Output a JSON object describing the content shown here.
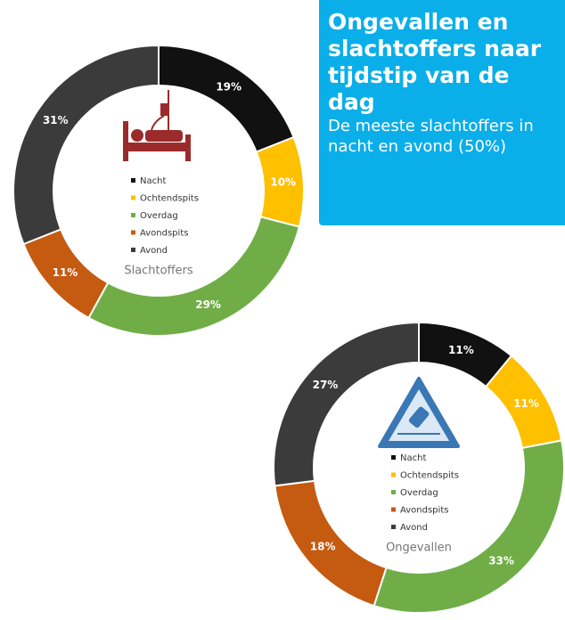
{
  "header": {
    "title": "Ongevallen en slachtoffers naar tijdstip van de dag",
    "subtitle": "De meeste slachtoffers in nacht en avond (50%)"
  },
  "chart_data": [
    {
      "type": "pie",
      "title": "Slachtoffers",
      "categories": [
        "Nacht",
        "Ochtendspits",
        "Overdag",
        "Avondspits",
        "Avond"
      ],
      "values": [
        19,
        10,
        29,
        11,
        31
      ],
      "value_labels": [
        "19%",
        "10%",
        "29%",
        "11%",
        "31%"
      ],
      "colors": [
        "#111111",
        "#ffc000",
        "#70ad47",
        "#c55a11",
        "#3b3b3b"
      ]
    },
    {
      "type": "pie",
      "title": "Ongevallen",
      "categories": [
        "Nacht",
        "Ochtendspits",
        "Overdag",
        "Avondspits",
        "Avond"
      ],
      "values": [
        11,
        11,
        33,
        18,
        27
      ],
      "value_labels": [
        "11%",
        "11%",
        "33%",
        "18%",
        "27%"
      ],
      "colors": [
        "#111111",
        "#ffc000",
        "#70ad47",
        "#c55a11",
        "#3b3b3b"
      ]
    }
  ]
}
